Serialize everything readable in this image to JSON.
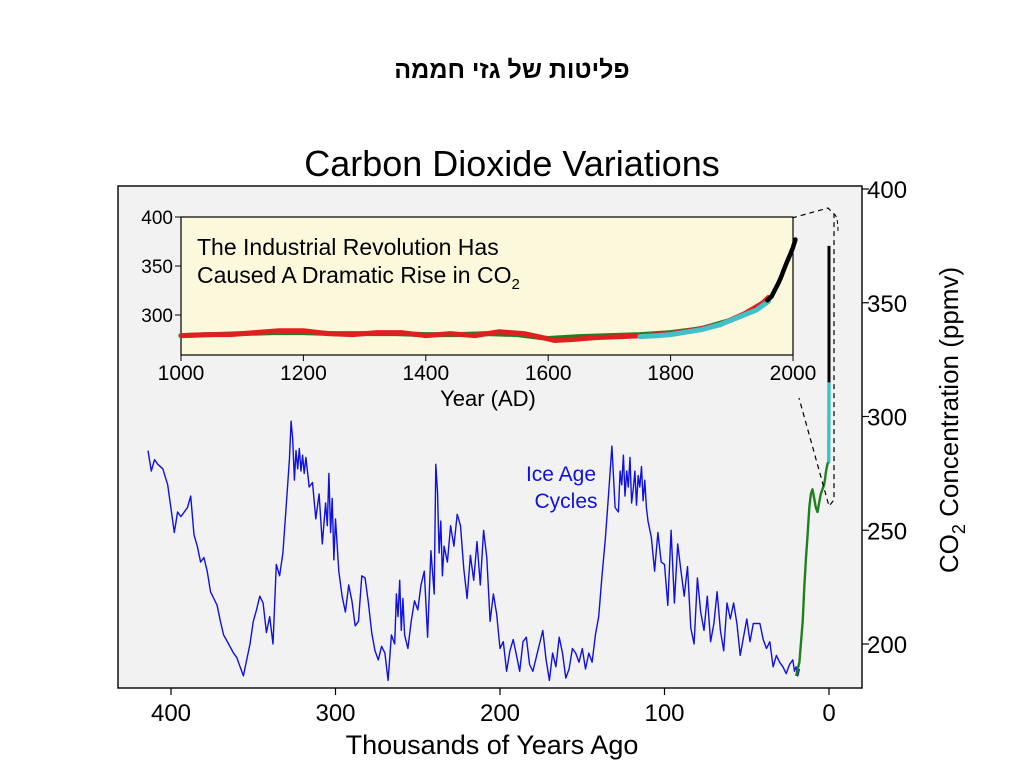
{
  "slide": {
    "title": "פליטות של גזי חממה"
  },
  "chart_data": [
    {
      "type": "line",
      "title": "Carbon Dioxide Variations",
      "xlabel": "Thousands of Years Ago",
      "ylabel_main": "CO",
      "ylabel_sub": "2",
      "ylabel_rest": " Concentration (ppmv)",
      "xlim": [
        420,
        -20
      ],
      "ylim": [
        180,
        400
      ],
      "xticks": [
        400,
        300,
        200,
        100,
        0
      ],
      "yticks": [
        200,
        250,
        300,
        350,
        400
      ],
      "grid": false,
      "annotation": [
        "Ice Age",
        "Cycles"
      ],
      "colors": {
        "ice_core": "#1010e0",
        "recent": "#208020",
        "modern": "#40c0c8",
        "direct": "#000000",
        "background": "#f2f2f2"
      },
      "series": [
        {
          "x": [
            414,
            412,
            410,
            408,
            405,
            402,
            398,
            396,
            394,
            390,
            388,
            386,
            384,
            382,
            380,
            378,
            376,
            374,
            372,
            370,
            368,
            365,
            362,
            360,
            358,
            356,
            354,
            352,
            350,
            348,
            346,
            344,
            342,
            340,
            338,
            336,
            334,
            332,
            330,
            328,
            327,
            326,
            325,
            324,
            323,
            322,
            321,
            320,
            319,
            318,
            316,
            314,
            312,
            310,
            308,
            306,
            305,
            304,
            303,
            302,
            301,
            300,
            298,
            296,
            294,
            292,
            290,
            288,
            286,
            284,
            282,
            280,
            278,
            276,
            274,
            272,
            270,
            268,
            266,
            264,
            263,
            262,
            261,
            260,
            259,
            258,
            256,
            254,
            252,
            250,
            248,
            246,
            244,
            242,
            240,
            239,
            238,
            237,
            236,
            235,
            234,
            232,
            230,
            228,
            226,
            224,
            222,
            220,
            218,
            216,
            214,
            212,
            210,
            208,
            206,
            204,
            202,
            200,
            198,
            196,
            194,
            192,
            190,
            188,
            186,
            184,
            182,
            180,
            178,
            176,
            174,
            172,
            170,
            168,
            166,
            164,
            162,
            160,
            158,
            156,
            154,
            152,
            150,
            148,
            146,
            144,
            142,
            140,
            138,
            136,
            134,
            132,
            130,
            128,
            127,
            126,
            125,
            124,
            123,
            122,
            121,
            120,
            119,
            118,
            117,
            116,
            115,
            114,
            113,
            112,
            111,
            110,
            108,
            106,
            104,
            102,
            100,
            98,
            96,
            94,
            92,
            90,
            88,
            86,
            84,
            82,
            80,
            78,
            76,
            74,
            72,
            70,
            68,
            66,
            64,
            62,
            60,
            58,
            56,
            54,
            52,
            50,
            48,
            46,
            44,
            42,
            40,
            38,
            36,
            34,
            32,
            30,
            28,
            26,
            24,
            22,
            21,
            20,
            19,
            18
          ],
          "y": [
            285,
            276,
            281,
            279,
            277,
            270,
            249,
            258,
            256,
            260,
            265,
            248,
            243,
            236,
            238,
            232,
            223,
            220,
            217,
            210,
            204,
            200,
            196,
            194,
            190,
            186,
            193,
            200,
            210,
            215,
            221,
            218,
            205,
            212,
            200,
            235,
            230,
            240,
            260,
            281,
            298,
            290,
            272,
            285,
            277,
            286,
            276,
            283,
            275,
            282,
            269,
            271,
            255,
            266,
            244,
            262,
            252,
            275,
            249,
            264,
            237,
            255,
            232,
            221,
            214,
            226,
            219,
            208,
            210,
            230,
            229,
            218,
            205,
            197,
            193,
            199,
            196,
            184,
            204,
            200,
            222,
            212,
            228,
            206,
            220,
            204,
            198,
            210,
            219,
            215,
            226,
            232,
            203,
            241,
            222,
            279,
            267,
            240,
            254,
            230,
            243,
            236,
            252,
            243,
            257,
            252,
            233,
            220,
            239,
            228,
            245,
            226,
            250,
            238,
            210,
            222,
            213,
            198,
            201,
            188,
            197,
            202,
            195,
            188,
            201,
            203,
            191,
            188,
            194,
            200,
            206,
            193,
            184,
            196,
            190,
            203,
            196,
            185,
            189,
            198,
            196,
            192,
            198,
            189,
            196,
            192,
            204,
            212,
            230,
            246,
            266,
            287,
            260,
            258,
            276,
            270,
            283,
            265,
            276,
            269,
            282,
            262,
            268,
            276,
            261,
            274,
            269,
            278,
            263,
            272,
            260,
            254,
            247,
            232,
            249,
            236,
            235,
            217,
            250,
            218,
            244,
            232,
            221,
            234,
            207,
            200,
            229,
            214,
            206,
            221,
            201,
            209,
            223,
            206,
            197,
            218,
            211,
            218,
            209,
            195,
            203,
            211,
            201,
            209,
            209,
            209,
            202,
            198,
            201,
            190,
            195,
            192,
            190,
            187,
            191,
            193,
            188,
            190,
            186,
            189
          ]
        },
        {
          "x": [
            20,
            18,
            16,
            15,
            14,
            13,
            12,
            11,
            10,
            9,
            8,
            7,
            6,
            5,
            4,
            3,
            2.5,
            2,
            1.5,
            1,
            0.5,
            0.3
          ],
          "y": [
            186,
            192,
            210,
            225,
            238,
            248,
            260,
            266,
            268,
            264,
            260,
            258,
            262,
            266,
            268,
            270,
            272,
            275,
            277,
            279,
            280,
            281
          ]
        },
        {
          "x": [
            0.25,
            0.2,
            0.15,
            0.1,
            0.05,
            0.02
          ],
          "y": [
            280,
            280,
            283,
            288,
            300,
            315
          ]
        },
        {
          "x": [
            0.02,
            0.01,
            0.0
          ],
          "y": [
            315,
            345,
            375
          ]
        }
      ]
    },
    {
      "type": "line",
      "title": [
        "The Industrial Revolution Has",
        "Caused A Dramatic Rise in CO",
        "2"
      ],
      "xlabel": "Year (AD)",
      "xlim": [
        1000,
        2000
      ],
      "ylim": [
        260,
        400
      ],
      "xticks": [
        1000,
        1200,
        1400,
        1600,
        1800,
        2000
      ],
      "yticks": [
        300,
        350,
        400
      ],
      "background": "#fcf8dc",
      "series": [
        {
          "name": "green",
          "x": [
            1000,
            1050,
            1100,
            1150,
            1200,
            1250,
            1300,
            1350,
            1400,
            1450,
            1500,
            1550,
            1600,
            1650,
            1700,
            1750,
            1800,
            1850,
            1900,
            1950
          ],
          "y": [
            279,
            280,
            281,
            282,
            282,
            281,
            281,
            281,
            280,
            280,
            281,
            280,
            276,
            278,
            279,
            280,
            282,
            286,
            295,
            310
          ]
        },
        {
          "name": "red",
          "x": [
            1000,
            1040,
            1080,
            1120,
            1160,
            1200,
            1240,
            1280,
            1320,
            1360,
            1400,
            1440,
            1480,
            1520,
            1560,
            1590,
            1610,
            1640,
            1680,
            1720,
            1760,
            1800,
            1840,
            1880,
            1920,
            1950,
            1960
          ],
          "y": [
            279,
            280,
            280,
            282,
            284,
            284,
            281,
            280,
            282,
            282,
            279,
            281,
            279,
            283,
            281,
            277,
            274,
            275,
            277,
            278,
            279,
            281,
            285,
            290,
            301,
            312,
            318
          ]
        },
        {
          "name": "cyan",
          "x": [
            1750,
            1780,
            1800,
            1820,
            1850,
            1880,
            1900,
            1920,
            1940,
            1960
          ],
          "y": [
            278,
            279,
            280,
            282,
            285,
            290,
            295,
            300,
            305,
            314
          ]
        },
        {
          "name": "black",
          "x": [
            1958,
            1965,
            1970,
            1975,
            1980,
            1985,
            1990,
            1995,
            2000,
            2004
          ],
          "y": [
            315,
            319,
            325,
            331,
            338,
            346,
            354,
            361,
            369,
            377
          ]
        }
      ]
    }
  ]
}
